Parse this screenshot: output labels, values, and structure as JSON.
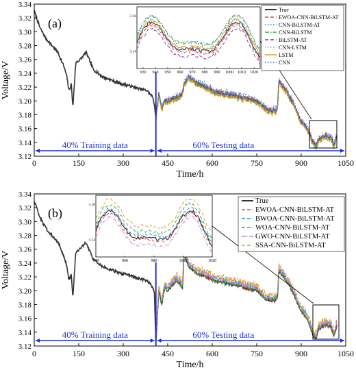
{
  "chart_data": [
    {
      "type": "line",
      "panel_label": "(a)",
      "xlabel": "Time/h",
      "ylabel": "Voltage/V",
      "xlim": [
        0,
        1050
      ],
      "ylim": [
        3.12,
        3.34
      ],
      "xticks": [
        0,
        150,
        300,
        450,
        600,
        750,
        900,
        1050
      ],
      "yticks": [
        3.12,
        3.14,
        3.16,
        3.18,
        3.2,
        3.22,
        3.24,
        3.26,
        3.28,
        3.3,
        3.32,
        3.34
      ],
      "grid": false,
      "legend_position": "top-right (inside inset)",
      "split_x": 410,
      "annotations": [
        "40% Training data",
        "60% Testing data"
      ],
      "inset": {
        "xlim": [
          925,
          1025
        ],
        "ylim": [
          3.13,
          3.165
        ],
        "xticks": [
          930,
          940,
          950,
          960,
          970,
          980,
          990,
          1000,
          1010,
          1020
        ],
        "yticks": [
          3.14,
          3.16
        ],
        "zoom_box_x": [
          940,
          1020
        ],
        "zoom_box_y": [
          3.128,
          3.162
        ]
      },
      "series": [
        {
          "name": "True",
          "color": "#333333",
          "dash": "solid"
        },
        {
          "name": "EWOA-CNN-BiLSTM-AT",
          "color": "#e8403a",
          "dash": "dash"
        },
        {
          "name": "CNN-BiLSTM-AT",
          "color": "#2e7fd0",
          "dash": "dot"
        },
        {
          "name": "CNN-BiLSTM",
          "color": "#2aa84a",
          "dash": "dashdot"
        },
        {
          "name": "BiLSTM-AT",
          "color": "#7a3a8a",
          "dash": "dash"
        },
        {
          "name": "CNN-LSTM",
          "color": "#b58ae0",
          "dash": "dot"
        },
        {
          "name": "LSTM",
          "color": "#e0a020",
          "dash": "solid"
        },
        {
          "name": "CNN",
          "color": "#1f6f8b",
          "dash": "dot"
        }
      ],
      "true_series": {
        "x": [
          0,
          20,
          40,
          60,
          80,
          100,
          110,
          115,
          118,
          125,
          130,
          140,
          155,
          165,
          175,
          200,
          230,
          260,
          290,
          320,
          350,
          380,
          400,
          405,
          410,
          420,
          430,
          440,
          450,
          480,
          500,
          505,
          520,
          550,
          580,
          610,
          650,
          700,
          750,
          780,
          810,
          820,
          825,
          830,
          850,
          880,
          900,
          920,
          940,
          950,
          960,
          980,
          1000,
          1010,
          1020
        ],
        "y": [
          3.33,
          3.305,
          3.29,
          3.28,
          3.27,
          3.25,
          3.235,
          3.22,
          3.215,
          3.225,
          3.19,
          3.255,
          3.26,
          3.265,
          3.27,
          3.245,
          3.235,
          3.23,
          3.225,
          3.222,
          3.218,
          3.215,
          3.205,
          3.195,
          3.175,
          3.21,
          3.19,
          3.2,
          3.2,
          3.205,
          3.21,
          3.225,
          3.235,
          3.225,
          3.22,
          3.213,
          3.21,
          3.205,
          3.2,
          3.188,
          3.185,
          3.19,
          3.23,
          3.225,
          3.215,
          3.19,
          3.17,
          3.16,
          3.14,
          3.135,
          3.145,
          3.15,
          3.148,
          3.135,
          3.15
        ]
      }
    },
    {
      "type": "line",
      "panel_label": "(b)",
      "xlabel": "Time/h",
      "ylabel": "Voltage/V",
      "xlim": [
        0,
        1050
      ],
      "ylim": [
        3.12,
        3.34
      ],
      "xticks": [
        0,
        150,
        300,
        450,
        600,
        750,
        900,
        1050
      ],
      "yticks": [
        3.12,
        3.14,
        3.16,
        3.18,
        3.2,
        3.22,
        3.24,
        3.26,
        3.28,
        3.3,
        3.32,
        3.34
      ],
      "grid": false,
      "legend_position": "right",
      "split_x": 410,
      "annotations": [
        "40% Training data",
        "60% Testing data"
      ],
      "inset": {
        "xlim": [
          940,
          1020
        ],
        "ylim": [
          3.13,
          3.165
        ],
        "xticks": [
          940,
          960,
          980,
          1000,
          1020
        ],
        "yticks": [
          3.14,
          3.16
        ],
        "zoom_box_x": [
          945,
          1020
        ],
        "zoom_box_y": [
          3.128,
          3.17
        ]
      },
      "series": [
        {
          "name": "True",
          "color": "#333333",
          "dash": "solid"
        },
        {
          "name": "EWOA-CNN-BiLSTM-AT",
          "color": "#e8403a",
          "dash": "dash"
        },
        {
          "name": "BWOA-CNN-BiLSTM-AT",
          "color": "#2e7fd0",
          "dash": "dash"
        },
        {
          "name": "WOA-CNN-BiLSTM-AT",
          "color": "#2aa84a",
          "dash": "dash"
        },
        {
          "name": "GWO-CNN-BiLSTM-AT",
          "color": "#b58ae0",
          "dash": "dashdot"
        },
        {
          "name": "SSA-CNN-BiLSTM-AT",
          "color": "#e0a020",
          "dash": "dash"
        }
      ],
      "true_series": {
        "x": [
          0,
          20,
          40,
          60,
          80,
          100,
          110,
          115,
          118,
          125,
          130,
          140,
          155,
          165,
          175,
          200,
          230,
          260,
          290,
          320,
          350,
          380,
          400,
          405,
          410,
          420,
          430,
          440,
          450,
          480,
          500,
          505,
          520,
          550,
          580,
          610,
          650,
          700,
          750,
          780,
          810,
          820,
          825,
          830,
          850,
          880,
          900,
          920,
          940,
          950,
          960,
          980,
          1000,
          1010,
          1020
        ],
        "y": [
          3.33,
          3.305,
          3.29,
          3.28,
          3.27,
          3.25,
          3.235,
          3.22,
          3.215,
          3.225,
          3.19,
          3.255,
          3.26,
          3.265,
          3.27,
          3.245,
          3.235,
          3.23,
          3.225,
          3.222,
          3.218,
          3.215,
          3.205,
          3.195,
          3.125,
          3.2,
          3.18,
          3.205,
          3.2,
          3.215,
          3.205,
          3.255,
          3.235,
          3.225,
          3.22,
          3.213,
          3.21,
          3.205,
          3.2,
          3.188,
          3.185,
          3.19,
          3.23,
          3.225,
          3.215,
          3.19,
          3.17,
          3.16,
          3.135,
          3.13,
          3.145,
          3.15,
          3.148,
          3.135,
          3.15
        ]
      }
    }
  ]
}
